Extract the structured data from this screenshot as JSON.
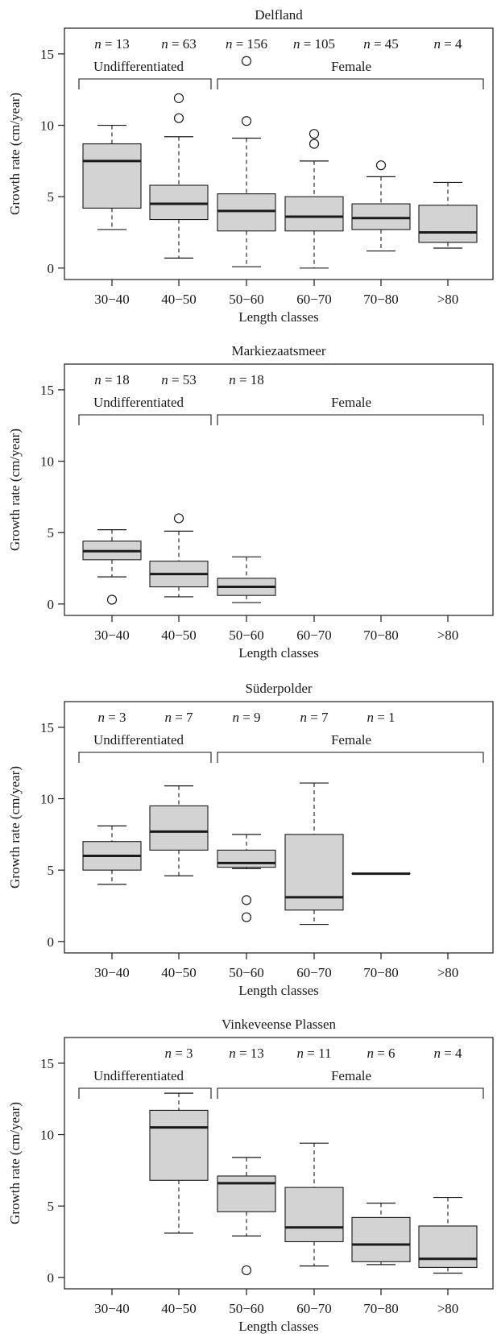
{
  "colors": {
    "box_fill": "#d3d3d3",
    "stroke": "#1a1a1a",
    "background": "#ffffff"
  },
  "chart_data": [
    {
      "type": "box",
      "title": "Delfland",
      "xlabel": "Length classes",
      "ylabel": "Growth rate (cm/year)",
      "ylim": [
        -0.8,
        16.8
      ],
      "yticks": [
        0,
        5,
        10,
        15
      ],
      "categories": [
        "30−40",
        "40−50",
        "50−60",
        "60−70",
        "70−80",
        ">80"
      ],
      "n_labels": [
        "n = 13",
        "n = 63",
        "n = 156",
        "n = 105",
        "n = 45",
        "n = 4"
      ],
      "groups": [
        {
          "label": "Undifferentiated",
          "from": 0,
          "to": 1
        },
        {
          "label": "Female",
          "from": 2,
          "to": 5
        }
      ],
      "boxes": [
        {
          "category": "30−40",
          "whisker_low": 2.7,
          "q1": 4.2,
          "median": 7.5,
          "q3": 8.7,
          "whisker_high": 10.0,
          "outliers": []
        },
        {
          "category": "40−50",
          "whisker_low": 0.7,
          "q1": 3.4,
          "median": 4.5,
          "q3": 5.8,
          "whisker_high": 9.2,
          "outliers": [
            10.5,
            11.9
          ]
        },
        {
          "category": "50−60",
          "whisker_low": 0.1,
          "q1": 2.6,
          "median": 4.0,
          "q3": 5.2,
          "whisker_high": 9.1,
          "outliers": [
            10.3,
            14.5
          ]
        },
        {
          "category": "60−70",
          "whisker_low": 0.0,
          "q1": 2.6,
          "median": 3.6,
          "q3": 5.0,
          "whisker_high": 7.5,
          "outliers": [
            8.7,
            9.4
          ]
        },
        {
          "category": "70−80",
          "whisker_low": 1.2,
          "q1": 2.7,
          "median": 3.5,
          "q3": 4.5,
          "whisker_high": 6.4,
          "outliers": [
            7.2
          ]
        },
        {
          "category": ">80",
          "whisker_low": 1.4,
          "q1": 1.8,
          "median": 2.5,
          "q3": 4.4,
          "whisker_high": 6.0,
          "outliers": []
        }
      ]
    },
    {
      "type": "box",
      "title": "Markiezaatsmeer",
      "xlabel": "Length classes",
      "ylabel": "Growth rate (cm/year)",
      "ylim": [
        -0.8,
        16.8
      ],
      "yticks": [
        0,
        5,
        10,
        15
      ],
      "categories": [
        "30−40",
        "40−50",
        "50−60",
        "60−70",
        "70−80",
        ">80"
      ],
      "n_labels": [
        "n = 18",
        "n = 53",
        "n = 18",
        "",
        "",
        ""
      ],
      "groups": [
        {
          "label": "Undifferentiated",
          "from": 0,
          "to": 1
        },
        {
          "label": "Female",
          "from": 2,
          "to": 5
        }
      ],
      "boxes": [
        {
          "category": "30−40",
          "whisker_low": 1.9,
          "q1": 3.1,
          "median": 3.7,
          "q3": 4.4,
          "whisker_high": 5.2,
          "outliers": [
            0.3
          ]
        },
        {
          "category": "40−50",
          "whisker_low": 0.5,
          "q1": 1.2,
          "median": 2.1,
          "q3": 3.0,
          "whisker_high": 5.1,
          "outliers": [
            6.0
          ]
        },
        {
          "category": "50−60",
          "whisker_low": 0.1,
          "q1": 0.6,
          "median": 1.2,
          "q3": 1.8,
          "whisker_high": 3.3,
          "outliers": []
        }
      ]
    },
    {
      "type": "box",
      "title": "Süderpolder",
      "xlabel": "Length classes",
      "ylabel": "Growth rate (cm/year)",
      "ylim": [
        -0.8,
        16.8
      ],
      "yticks": [
        0,
        5,
        10,
        15
      ],
      "categories": [
        "30−40",
        "40−50",
        "50−60",
        "60−70",
        "70−80",
        ">80"
      ],
      "n_labels": [
        "n = 3",
        "n = 7",
        "n = 9",
        "n = 7",
        "n = 1",
        ""
      ],
      "groups": [
        {
          "label": "Undifferentiated",
          "from": 0,
          "to": 1
        },
        {
          "label": "Female",
          "from": 2,
          "to": 5
        }
      ],
      "boxes": [
        {
          "category": "30−40",
          "whisker_low": 4.0,
          "q1": 5.0,
          "median": 6.0,
          "q3": 7.0,
          "whisker_high": 8.1,
          "outliers": []
        },
        {
          "category": "40−50",
          "whisker_low": 4.6,
          "q1": 6.4,
          "median": 7.7,
          "q3": 9.5,
          "whisker_high": 10.9,
          "outliers": []
        },
        {
          "category": "50−60",
          "whisker_low": 5.1,
          "q1": 5.2,
          "median": 5.5,
          "q3": 6.4,
          "whisker_high": 7.5,
          "outliers": [
            2.9,
            1.7
          ]
        },
        {
          "category": "60−70",
          "whisker_low": 1.2,
          "q1": 2.2,
          "median": 3.1,
          "q3": 7.5,
          "whisker_high": 11.1,
          "outliers": []
        },
        {
          "category": "70−80",
          "whisker_low": 4.75,
          "q1": 4.75,
          "median": 4.75,
          "q3": 4.75,
          "whisker_high": 4.75,
          "outliers": []
        }
      ]
    },
    {
      "type": "box",
      "title": "Vinkeveense Plassen",
      "xlabel": "Length classes",
      "ylabel": "Growth rate (cm/year)",
      "ylim": [
        -0.8,
        16.8
      ],
      "yticks": [
        0,
        5,
        10,
        15
      ],
      "categories": [
        "30−40",
        "40−50",
        "50−60",
        "60−70",
        "70−80",
        ">80"
      ],
      "n_labels": [
        "",
        "n = 3",
        "n = 13",
        "n = 11",
        "n = 6",
        "n = 4"
      ],
      "groups": [
        {
          "label": "Undifferentiated",
          "from": 0,
          "to": 1
        },
        {
          "label": "Female",
          "from": 2,
          "to": 5
        }
      ],
      "boxes": [
        {
          "category": "40−50",
          "whisker_low": 3.1,
          "q1": 6.8,
          "median": 10.5,
          "q3": 11.7,
          "whisker_high": 12.9,
          "outliers": []
        },
        {
          "category": "50−60",
          "whisker_low": 2.9,
          "q1": 4.6,
          "median": 6.6,
          "q3": 7.1,
          "whisker_high": 8.4,
          "outliers": [
            0.5
          ]
        },
        {
          "category": "60−70",
          "whisker_low": 0.8,
          "q1": 2.5,
          "median": 3.5,
          "q3": 6.3,
          "whisker_high": 9.4,
          "outliers": []
        },
        {
          "category": "70−80",
          "whisker_low": 0.9,
          "q1": 1.1,
          "median": 2.3,
          "q3": 4.2,
          "whisker_high": 5.2,
          "outliers": []
        },
        {
          "category": ">80",
          "whisker_low": 0.3,
          "q1": 0.7,
          "median": 1.3,
          "q3": 3.6,
          "whisker_high": 5.6,
          "outliers": []
        }
      ]
    }
  ]
}
